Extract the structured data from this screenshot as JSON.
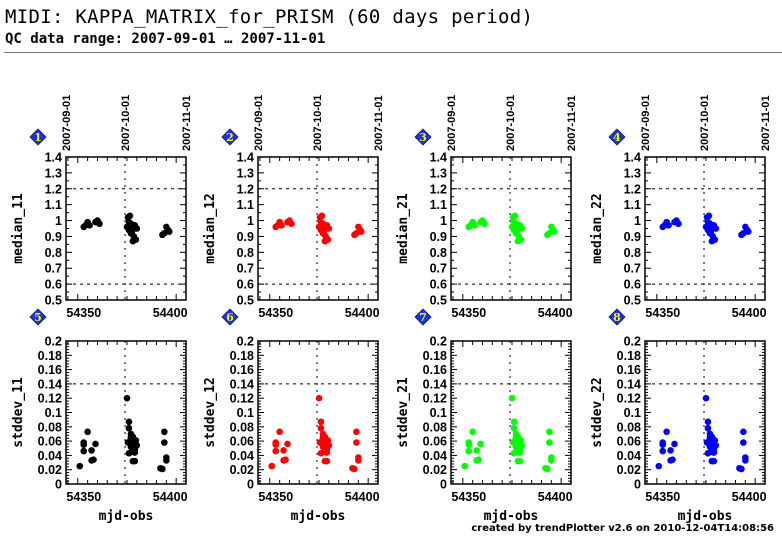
{
  "header": {
    "title": "MIDI: KAPPA_MATRIX_for_PRISM (60 days period)",
    "subtitle": "QC data range: 2007-09-01 … 2007-11-01"
  },
  "footer": "created by trendPlotter v2.6 on 2010-12-04T14:08:56",
  "chart_data": [
    {
      "type": "scatter",
      "panel": 1,
      "ylabel": "median_11",
      "xlabel": "",
      "color": "#000000",
      "ylim": [
        0.5,
        1.4
      ],
      "yticks": [
        0.5,
        0.6,
        0.7,
        0.8,
        0.9,
        1,
        1.1,
        1.2,
        1.3,
        1.4
      ],
      "yticklabels": [
        "0.5",
        "0.6",
        "0.7",
        "0.8",
        "0.9",
        "1",
        "1.1",
        "1.2",
        "1.3",
        "1.4"
      ],
      "hlines": [
        0.6,
        1.2
      ],
      "xlim": [
        54344,
        54405
      ],
      "xticks": [
        54350,
        54400
      ],
      "xticklabels": [
        "54350",
        "54400"
      ],
      "top_ticklabels": [
        "2007-09-01",
        "2007-10-01",
        "2007-11-01"
      ],
      "top_ticks": [
        54344,
        54374,
        54405
      ],
      "vline": 54374,
      "badge": "1",
      "x": [
        54353,
        54354,
        54355,
        54356,
        54359,
        54360,
        54361,
        54375,
        54375.5,
        54376,
        54376.5,
        54377,
        54377.5,
        54378,
        54378.5,
        54379,
        54379.5,
        54380,
        54376,
        54377,
        54378,
        54379,
        54393,
        54394,
        54395,
        54396,
        54396.5
      ],
      "y": [
        0.96,
        0.97,
        0.99,
        0.97,
        0.99,
        1.0,
        0.98,
        0.96,
        1.02,
        0.94,
        1.03,
        0.98,
        0.93,
        0.95,
        0.9,
        0.97,
        0.88,
        0.95,
        0.99,
        0.92,
        0.87,
        0.96,
        0.91,
        0.92,
        0.96,
        0.94,
        0.93
      ]
    },
    {
      "type": "scatter",
      "panel": 2,
      "ylabel": "median_12",
      "xlabel": "",
      "color": "#ff0000",
      "ylim": [
        0.5,
        1.4
      ],
      "yticks": [
        0.5,
        0.6,
        0.7,
        0.8,
        0.9,
        1,
        1.1,
        1.2,
        1.3,
        1.4
      ],
      "yticklabels": [
        "0.5",
        "0.6",
        "0.7",
        "0.8",
        "0.9",
        "1",
        "1.1",
        "1.2",
        "1.3",
        "1.4"
      ],
      "hlines": [
        0.6,
        1.2
      ],
      "xlim": [
        54344,
        54405
      ],
      "xticks": [
        54350,
        54400
      ],
      "xticklabels": [
        "54350",
        "54400"
      ],
      "top_ticklabels": [
        "2007-09-01",
        "2007-10-01",
        "2007-11-01"
      ],
      "top_ticks": [
        54344,
        54374,
        54405
      ],
      "vline": 54374,
      "badge": "2",
      "x": [
        54353,
        54354,
        54355,
        54356,
        54359,
        54360,
        54361,
        54375,
        54375.5,
        54376,
        54376.5,
        54377,
        54377.5,
        54378,
        54378.5,
        54379,
        54379.5,
        54380,
        54376,
        54377,
        54378,
        54379,
        54393,
        54394,
        54395,
        54396,
        54396.5
      ],
      "y": [
        0.96,
        0.97,
        0.99,
        0.97,
        0.99,
        1.0,
        0.98,
        0.96,
        1.02,
        0.94,
        1.03,
        0.98,
        0.93,
        0.95,
        0.9,
        0.97,
        0.88,
        0.95,
        0.99,
        0.92,
        0.87,
        0.96,
        0.91,
        0.92,
        0.96,
        0.94,
        0.93
      ]
    },
    {
      "type": "scatter",
      "panel": 3,
      "ylabel": "median_21",
      "xlabel": "",
      "color": "#00ff00",
      "ylim": [
        0.5,
        1.4
      ],
      "yticks": [
        0.5,
        0.6,
        0.7,
        0.8,
        0.9,
        1,
        1.1,
        1.2,
        1.3,
        1.4
      ],
      "yticklabels": [
        "0.5",
        "0.6",
        "0.7",
        "0.8",
        "0.9",
        "1",
        "1.1",
        "1.2",
        "1.3",
        "1.4"
      ],
      "hlines": [
        0.6,
        1.2
      ],
      "xlim": [
        54344,
        54405
      ],
      "xticks": [
        54350,
        54400
      ],
      "xticklabels": [
        "54350",
        "54400"
      ],
      "top_ticklabels": [
        "2007-09-01",
        "2007-10-01",
        "2007-11-01"
      ],
      "top_ticks": [
        54344,
        54374,
        54405
      ],
      "vline": 54374,
      "badge": "3",
      "x": [
        54353,
        54354,
        54355,
        54356,
        54359,
        54360,
        54361,
        54375,
        54375.5,
        54376,
        54376.5,
        54377,
        54377.5,
        54378,
        54378.5,
        54379,
        54379.5,
        54380,
        54376,
        54377,
        54378,
        54379,
        54393,
        54394,
        54395,
        54396,
        54396.5
      ],
      "y": [
        0.96,
        0.97,
        0.99,
        0.97,
        0.99,
        1.0,
        0.98,
        0.96,
        1.02,
        0.94,
        1.03,
        0.98,
        0.93,
        0.95,
        0.9,
        0.97,
        0.88,
        0.95,
        0.99,
        0.92,
        0.87,
        0.96,
        0.91,
        0.92,
        0.96,
        0.94,
        0.93
      ]
    },
    {
      "type": "scatter",
      "panel": 4,
      "ylabel": "median_22",
      "xlabel": "",
      "color": "#0000ff",
      "ylim": [
        0.5,
        1.4
      ],
      "yticks": [
        0.5,
        0.6,
        0.7,
        0.8,
        0.9,
        1,
        1.1,
        1.2,
        1.3,
        1.4
      ],
      "yticklabels": [
        "0.5",
        "0.6",
        "0.7",
        "0.8",
        "0.9",
        "1",
        "1.1",
        "1.2",
        "1.3",
        "1.4"
      ],
      "hlines": [
        0.6,
        1.2
      ],
      "xlim": [
        54344,
        54405
      ],
      "xticks": [
        54350,
        54400
      ],
      "xticklabels": [
        "54350",
        "54400"
      ],
      "top_ticklabels": [
        "2007-09-01",
        "2007-10-01",
        "2007-11-01"
      ],
      "top_ticks": [
        54344,
        54374,
        54405
      ],
      "vline": 54374,
      "badge": "4",
      "x": [
        54353,
        54354,
        54355,
        54356,
        54359,
        54360,
        54361,
        54375,
        54375.5,
        54376,
        54376.5,
        54377,
        54377.5,
        54378,
        54378.5,
        54379,
        54379.5,
        54380,
        54376,
        54377,
        54378,
        54379,
        54393,
        54394,
        54395,
        54396,
        54396.5
      ],
      "y": [
        0.96,
        0.97,
        0.99,
        0.97,
        0.99,
        1.0,
        0.98,
        0.96,
        1.02,
        0.94,
        1.03,
        0.98,
        0.93,
        0.95,
        0.9,
        0.97,
        0.88,
        0.95,
        0.99,
        0.92,
        0.87,
        0.96,
        0.91,
        0.92,
        0.96,
        0.94,
        0.93
      ]
    },
    {
      "type": "scatter",
      "panel": 5,
      "ylabel": "stddev_11",
      "xlabel": "mjd-obs",
      "color": "#000000",
      "ylim": [
        0,
        0.2
      ],
      "yticks": [
        0,
        0.02,
        0.04,
        0.06,
        0.08,
        0.1,
        0.12,
        0.14,
        0.16,
        0.18,
        0.2
      ],
      "yticklabels": [
        "0",
        "0.02",
        "0.04",
        "0.06",
        "0.08",
        "0.1",
        "0.12",
        "0.14",
        "0.16",
        "0.18",
        "0.2"
      ],
      "hlines": [
        0.14
      ],
      "xlim": [
        54344,
        54405
      ],
      "xticks": [
        54350,
        54400
      ],
      "xticklabels": [
        "54350",
        "54400"
      ],
      "vline": 54374,
      "badge": "5",
      "x": [
        54351,
        54353,
        54353,
        54353,
        54355,
        54357,
        54357,
        54358,
        54359,
        54375,
        54375.5,
        54376,
        54376,
        54376.5,
        54377,
        54377,
        54377.5,
        54378,
        54378,
        54378.5,
        54379,
        54379,
        54379.5,
        54380,
        54376,
        54377,
        54378,
        54379,
        54392,
        54393,
        54394,
        54394,
        54395,
        54395
      ],
      "y": [
        0.025,
        0.058,
        0.055,
        0.046,
        0.073,
        0.033,
        0.047,
        0.034,
        0.056,
        0.12,
        0.058,
        0.087,
        0.078,
        0.06,
        0.07,
        0.052,
        0.045,
        0.066,
        0.05,
        0.058,
        0.032,
        0.044,
        0.061,
        0.054,
        0.043,
        0.065,
        0.032,
        0.048,
        0.022,
        0.021,
        0.073,
        0.058,
        0.033,
        0.037
      ]
    },
    {
      "type": "scatter",
      "panel": 6,
      "ylabel": "stddev_12",
      "xlabel": "mjd-obs",
      "color": "#ff0000",
      "ylim": [
        0,
        0.2
      ],
      "yticks": [
        0,
        0.02,
        0.04,
        0.06,
        0.08,
        0.1,
        0.12,
        0.14,
        0.16,
        0.18,
        0.2
      ],
      "yticklabels": [
        "0",
        "0.02",
        "0.04",
        "0.06",
        "0.08",
        "0.1",
        "0.12",
        "0.14",
        "0.16",
        "0.18",
        "0.2"
      ],
      "hlines": [
        0.14
      ],
      "xlim": [
        54344,
        54405
      ],
      "xticks": [
        54350,
        54400
      ],
      "xticklabels": [
        "54350",
        "54400"
      ],
      "vline": 54374,
      "badge": "6",
      "x": [
        54351,
        54353,
        54353,
        54353,
        54355,
        54357,
        54357,
        54358,
        54359,
        54375,
        54375.5,
        54376,
        54376,
        54376.5,
        54377,
        54377,
        54377.5,
        54378,
        54378,
        54378.5,
        54379,
        54379,
        54379.5,
        54380,
        54376,
        54377,
        54378,
        54379,
        54392,
        54393,
        54394,
        54394,
        54395,
        54395
      ],
      "y": [
        0.025,
        0.058,
        0.055,
        0.046,
        0.073,
        0.033,
        0.047,
        0.034,
        0.056,
        0.12,
        0.058,
        0.087,
        0.078,
        0.06,
        0.07,
        0.052,
        0.045,
        0.066,
        0.05,
        0.058,
        0.032,
        0.044,
        0.061,
        0.054,
        0.043,
        0.065,
        0.032,
        0.048,
        0.022,
        0.021,
        0.073,
        0.058,
        0.033,
        0.037
      ]
    },
    {
      "type": "scatter",
      "panel": 7,
      "ylabel": "stddev_21",
      "xlabel": "mjd-obs",
      "color": "#00ff00",
      "ylim": [
        0,
        0.2
      ],
      "yticks": [
        0,
        0.02,
        0.04,
        0.06,
        0.08,
        0.1,
        0.12,
        0.14,
        0.16,
        0.18,
        0.2
      ],
      "yticklabels": [
        "0",
        "0.02",
        "0.04",
        "0.06",
        "0.08",
        "0.1",
        "0.12",
        "0.14",
        "0.16",
        "0.18",
        "0.2"
      ],
      "hlines": [
        0.14
      ],
      "xlim": [
        54344,
        54405
      ],
      "xticks": [
        54350,
        54400
      ],
      "xticklabels": [
        "54350",
        "54400"
      ],
      "vline": 54374,
      "badge": "7",
      "x": [
        54351,
        54353,
        54353,
        54353,
        54355,
        54357,
        54357,
        54358,
        54359,
        54375,
        54375.5,
        54376,
        54376,
        54376.5,
        54377,
        54377,
        54377.5,
        54378,
        54378,
        54378.5,
        54379,
        54379,
        54379.5,
        54380,
        54376,
        54377,
        54378,
        54379,
        54392,
        54393,
        54394,
        54394,
        54395,
        54395
      ],
      "y": [
        0.025,
        0.058,
        0.055,
        0.046,
        0.073,
        0.033,
        0.047,
        0.034,
        0.056,
        0.12,
        0.058,
        0.087,
        0.078,
        0.06,
        0.07,
        0.052,
        0.045,
        0.066,
        0.05,
        0.058,
        0.032,
        0.044,
        0.061,
        0.054,
        0.043,
        0.065,
        0.032,
        0.048,
        0.022,
        0.021,
        0.073,
        0.058,
        0.033,
        0.037
      ]
    },
    {
      "type": "scatter",
      "panel": 8,
      "ylabel": "stddev_22",
      "xlabel": "mjd-obs",
      "color": "#0000ff",
      "ylim": [
        0,
        0.2
      ],
      "yticks": [
        0,
        0.02,
        0.04,
        0.06,
        0.08,
        0.1,
        0.12,
        0.14,
        0.16,
        0.18,
        0.2
      ],
      "yticklabels": [
        "0",
        "0.02",
        "0.04",
        "0.06",
        "0.08",
        "0.1",
        "0.12",
        "0.14",
        "0.16",
        "0.18",
        "0.2"
      ],
      "hlines": [
        0.14
      ],
      "xlim": [
        54344,
        54405
      ],
      "xticks": [
        54350,
        54400
      ],
      "xticklabels": [
        "54350",
        "54400"
      ],
      "vline": 54374,
      "badge": "8",
      "x": [
        54351,
        54353,
        54353,
        54353,
        54355,
        54357,
        54357,
        54358,
        54359,
        54375,
        54375.5,
        54376,
        54376,
        54376.5,
        54377,
        54377,
        54377.5,
        54378,
        54378,
        54378.5,
        54379,
        54379,
        54379.5,
        54380,
        54376,
        54377,
        54378,
        54379,
        54392,
        54393,
        54394,
        54394,
        54395,
        54395
      ],
      "y": [
        0.025,
        0.058,
        0.055,
        0.046,
        0.073,
        0.033,
        0.047,
        0.034,
        0.056,
        0.12,
        0.058,
        0.087,
        0.078,
        0.06,
        0.07,
        0.052,
        0.045,
        0.066,
        0.05,
        0.058,
        0.032,
        0.044,
        0.061,
        0.054,
        0.043,
        0.065,
        0.032,
        0.048,
        0.022,
        0.021,
        0.073,
        0.058,
        0.033,
        0.037
      ]
    }
  ]
}
